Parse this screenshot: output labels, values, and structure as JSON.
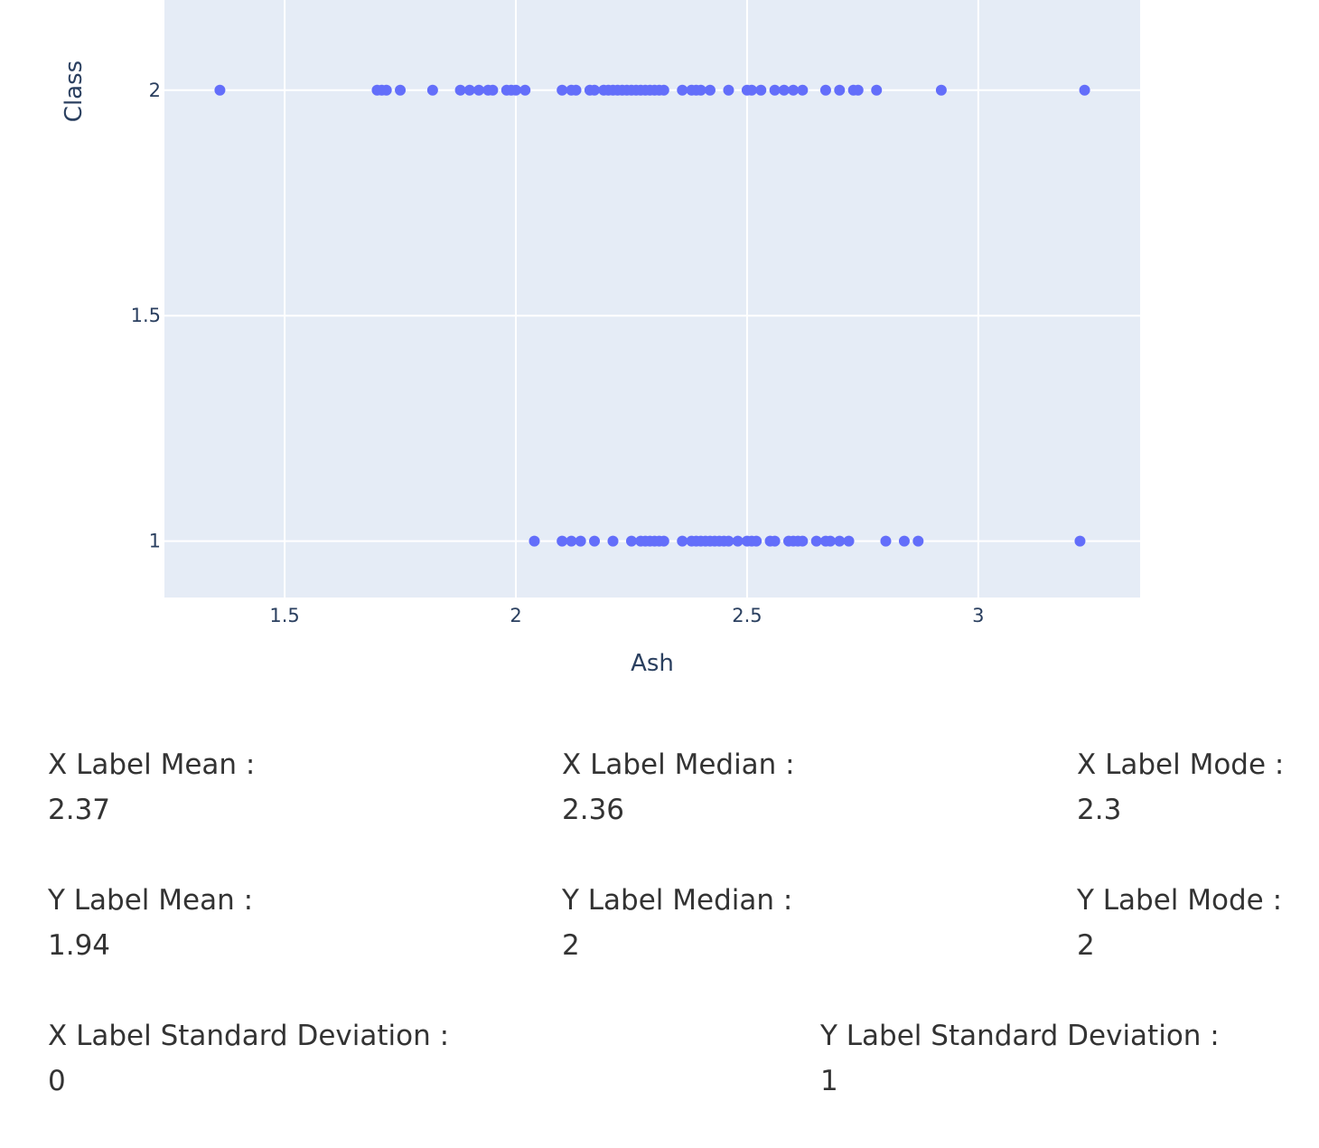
{
  "chart_data": {
    "type": "scatter",
    "xlabel": "Ash",
    "ylabel": "Class",
    "xlim": [
      1.24,
      3.35
    ],
    "ylim": [
      0.875,
      2.2
    ],
    "x_ticks": [
      1.5,
      2,
      2.5,
      3
    ],
    "x_tick_labels": [
      "1.5",
      "2",
      "2.5",
      "3"
    ],
    "y_ticks": [
      1,
      1.5,
      2
    ],
    "y_tick_labels": [
      "1",
      "1.5",
      "2"
    ],
    "grid": true,
    "marker_color": "#636efa",
    "plot_bg_color": "#e5ecf6",
    "series": [
      {
        "y": 2,
        "x": [
          1.36,
          1.7,
          1.71,
          1.72,
          1.75,
          1.82,
          1.88,
          1.9,
          1.92,
          1.94,
          1.95,
          1.98,
          1.99,
          2.0,
          2.02,
          2.1,
          2.12,
          2.13,
          2.16,
          2.17,
          2.19,
          2.2,
          2.21,
          2.22,
          2.23,
          2.24,
          2.25,
          2.26,
          2.27,
          2.28,
          2.29,
          2.3,
          2.31,
          2.32,
          2.36,
          2.38,
          2.39,
          2.4,
          2.42,
          2.46,
          2.5,
          2.51,
          2.53,
          2.56,
          2.58,
          2.6,
          2.62,
          2.67,
          2.7,
          2.73,
          2.74,
          2.78,
          2.92,
          3.23
        ]
      },
      {
        "y": 1,
        "x": [
          2.04,
          2.1,
          2.12,
          2.14,
          2.17,
          2.21,
          2.25,
          2.27,
          2.28,
          2.29,
          2.3,
          2.31,
          2.32,
          2.36,
          2.38,
          2.39,
          2.4,
          2.41,
          2.42,
          2.43,
          2.44,
          2.45,
          2.46,
          2.48,
          2.5,
          2.51,
          2.52,
          2.55,
          2.56,
          2.59,
          2.6,
          2.61,
          2.62,
          2.65,
          2.67,
          2.68,
          2.7,
          2.72,
          2.8,
          2.84,
          2.87,
          3.22
        ]
      }
    ]
  },
  "stats": {
    "x_mean_label": "X Label Mean :",
    "x_mean_value": "2.37",
    "x_median_label": "X Label Median :",
    "x_median_value": "2.36",
    "x_mode_label": "X Label Mode :",
    "x_mode_value": "2.3",
    "y_mean_label": "Y Label Mean :",
    "y_mean_value": "1.94",
    "y_median_label": "Y Label Median :",
    "y_median_value": "2",
    "y_mode_label": "Y Label Mode :",
    "y_mode_value": "2",
    "x_std_label": "X Label Standard Deviation :",
    "x_std_value": "0",
    "y_std_label": "Y Label Standard Deviation :",
    "y_std_value": "1"
  }
}
